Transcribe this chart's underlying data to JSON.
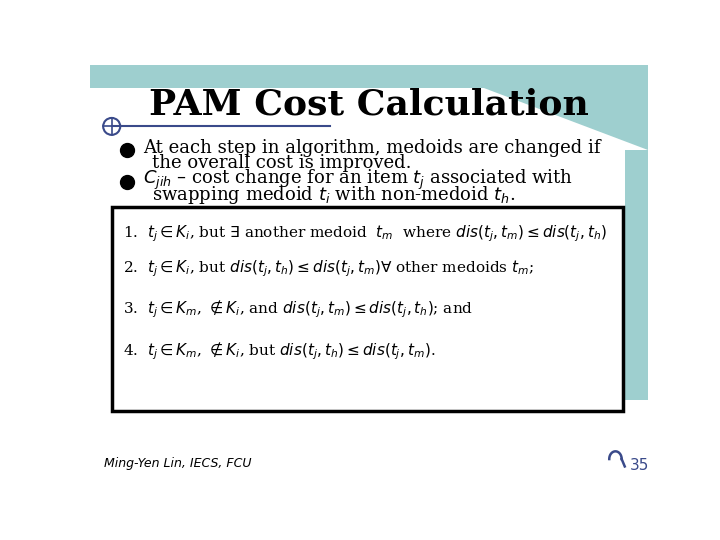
{
  "title": "PAM Cost Calculation",
  "bg_color": "#ffffff",
  "title_color": "#000000",
  "bullet1_line1": "At each step in algorithm, medoids are changed if",
  "bullet1_line2": "the overall cost is improved.",
  "bullet2_prefix": "$C_{jih}$",
  "bullet2_line1": " – cost change for an item $t_j$ associated with",
  "bullet2_line2": "swapping medoid $t_i$ with non-medoid $t_h$.",
  "box_item1": "1.  $t_j \\in K_i$, but $\\exists$ another medoid  $t_m$  where $dis(t_j, t_m) \\leq dis(t_j, t_h)$",
  "box_item2": "2.  $t_j \\in K_i$, but $dis(t_j, t_h) \\leq dis(t_j, t_m)\\forall$ other medoids $t_m$;",
  "box_item3": "3.  $t_j \\in K_m$, $\\notin K_i$, and $dis(t_j, t_m) \\leq dis(t_j, t_h)$; and",
  "box_item4": "4.  $t_j \\in K_m$, $\\notin K_i$, but $dis(t_j, t_h) \\leq dis(t_j, t_m)$.",
  "footer": "Ming-Yen Lin, IECS, FCU",
  "page_num": "35",
  "accent_color": "#3a4a8a",
  "teal_bg": "#9ecfcf",
  "line_color": "#3a4a8a"
}
